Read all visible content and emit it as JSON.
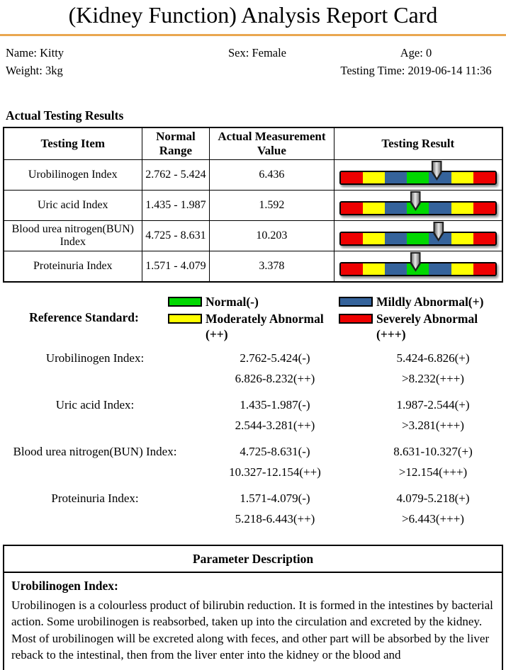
{
  "title": "(Kidney Function) Analysis Report Card",
  "patient": {
    "name": "Name: Kitty",
    "sex": "Sex: Female",
    "age": "Age: 0",
    "weight": "Weight: 3kg",
    "testing_time": "Testing Time: 2019-06-14 11:36"
  },
  "colors": {
    "divider": "#E9A750",
    "bar_segments": [
      "#EE0000",
      "#FFFF00",
      "#35639B",
      "#00D800",
      "#35639B",
      "#FFFF00",
      "#EE0000"
    ]
  },
  "results": {
    "section_title": "Actual Testing Results",
    "columns": [
      "Testing Item",
      "Normal Range",
      "Actual Measurement Value",
      "Testing Result"
    ],
    "rows": [
      {
        "item": "Urobilinogen Index",
        "normal_range": "2.762 - 5.424",
        "value": "6.436",
        "arrow_pos_percent": 62
      },
      {
        "item": "Uric acid Index",
        "normal_range": "1.435 - 1.987",
        "value": "1.592",
        "arrow_pos_percent": 48.5
      },
      {
        "item": "Blood urea nitrogen(BUN) Index",
        "normal_range": "4.725 - 8.631",
        "value": "10.203",
        "arrow_pos_percent": 63
      },
      {
        "item": "Proteinuria Index",
        "normal_range": "1.571 - 4.079",
        "value": "3.378",
        "arrow_pos_percent": 48.5
      }
    ]
  },
  "reference": {
    "label": "Reference Standard:",
    "legend": [
      {
        "name": "normal",
        "color": "#00D800",
        "label": "Normal(-)"
      },
      {
        "name": "mildly-abnormal",
        "color": "#35639B",
        "label": "Mildly Abnormal(+)"
      },
      {
        "name": "moderately-abnormal",
        "color": "#FFFF00",
        "label": "Moderately Abnormal (++)"
      },
      {
        "name": "severely-abnormal",
        "color": "#EE0000",
        "label": "Severely Abnormal (+++)"
      }
    ],
    "ranges": [
      {
        "label": "Urobilinogen Index:",
        "neg": "2.762-5.424(-)",
        "plus": "5.424-6.826(+)",
        "plus2": "6.826-8.232(++)",
        "plus3": ">8.232(+++)"
      },
      {
        "label": "Uric acid Index:",
        "neg": "1.435-1.987(-)",
        "plus": "1.987-2.544(+)",
        "plus2": "2.544-3.281(++)",
        "plus3": ">3.281(+++)"
      },
      {
        "label": "Blood urea nitrogen(BUN) Index:",
        "neg": "4.725-8.631(-)",
        "plus": "8.631-10.327(+)",
        "plus2": "10.327-12.154(++)",
        "plus3": ">12.154(+++)"
      },
      {
        "label": "Proteinuria Index:",
        "neg": "1.571-4.079(-)",
        "plus": "4.079-5.218(+)",
        "plus2": "5.218-6.443(++)",
        "plus3": ">6.443(+++)"
      }
    ]
  },
  "parameter_description": {
    "header": "Parameter Description",
    "item_title": "Urobilinogen Index:",
    "item_text": "Urobilinogen is a colourless product of bilirubin reduction. It is formed in the intestines by bacterial action. Some urobilinogen is reabsorbed, taken up into the circulation and excreted by the kidney. Most of urobilinogen will be excreted along with feces, and other part will be absorbed by the liver reback to the intestinal, then from the liver enter into the kidney or the blood and"
  }
}
